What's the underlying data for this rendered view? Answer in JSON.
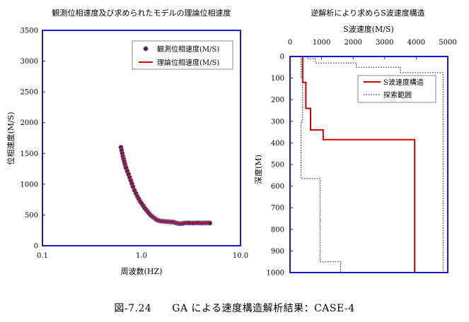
{
  "caption": "図-7.24　　GA による速度構造解析結果：CASE-4",
  "chart_data": [
    {
      "type": "scatter",
      "title": "観測位相速度及び求められたモデルの理論位相速度",
      "xlabel": "周波数(HZ)",
      "ylabel": "位相速度(M/S)",
      "xscale": "log",
      "xlim": [
        0.1,
        10.0
      ],
      "ylim": [
        0,
        3500
      ],
      "xticks": [
        "0.1",
        "1.0",
        "10.0"
      ],
      "xtick_values": [
        0.1,
        1.0,
        10.0
      ],
      "yticks": [
        "0",
        "500",
        "1000",
        "1500",
        "2000",
        "2500",
        "3000",
        "3500"
      ],
      "ytick_values": [
        0,
        500,
        1000,
        1500,
        2000,
        2500,
        3000,
        3500
      ],
      "legend": {
        "position": "top-right",
        "entries": [
          "観測位相速度(M/S)",
          "理論位相速度(M/S)"
        ]
      },
      "series": [
        {
          "name": "観測位相速度(M/S)",
          "marker": "circle",
          "color": "#2b2b50",
          "x": [
            0.62,
            0.63,
            0.64,
            0.65,
            0.66,
            0.67,
            0.68,
            0.69,
            0.7,
            0.72,
            0.74,
            0.76,
            0.78,
            0.8,
            0.82,
            0.85,
            0.88,
            0.91,
            0.94,
            0.97,
            1.0,
            1.04,
            1.08,
            1.12,
            1.16,
            1.2,
            1.25,
            1.3,
            1.35,
            1.4,
            1.46,
            1.52,
            1.58,
            1.65,
            1.72,
            1.8,
            1.88,
            1.96,
            2.05,
            2.15,
            2.25,
            2.35,
            2.45,
            2.55,
            2.65,
            2.8,
            2.95,
            3.1,
            3.3,
            3.5,
            3.7,
            3.9,
            4.1,
            4.3,
            4.5,
            4.7,
            4.9
          ],
          "y": [
            1600,
            1550,
            1500,
            1450,
            1410,
            1370,
            1330,
            1290,
            1260,
            1210,
            1160,
            1110,
            1060,
            1010,
            960,
            900,
            850,
            800,
            760,
            720,
            690,
            650,
            610,
            580,
            550,
            520,
            490,
            470,
            450,
            430,
            415,
            405,
            400,
            398,
            395,
            392,
            390,
            388,
            385,
            380,
            370,
            362,
            358,
            360,
            365,
            370,
            372,
            370,
            368,
            370,
            372,
            370,
            368,
            370,
            371,
            370,
            369
          ]
        },
        {
          "name": "理論位相速度(M/S)",
          "marker": "line",
          "color": "#d40000",
          "x": [
            0.62,
            0.65,
            0.7,
            0.76,
            0.82,
            0.88,
            0.94,
            1.0,
            1.08,
            1.16,
            1.25,
            1.35,
            1.46,
            1.58,
            1.72,
            1.88,
            2.05,
            2.25,
            2.45,
            2.65,
            2.95,
            3.3,
            3.7,
            4.1,
            4.5,
            4.9
          ],
          "y": [
            1600,
            1450,
            1260,
            1110,
            960,
            850,
            760,
            690,
            610,
            550,
            490,
            450,
            415,
            400,
            395,
            390,
            385,
            370,
            358,
            365,
            372,
            368,
            372,
            368,
            370,
            369
          ]
        }
      ]
    },
    {
      "type": "line",
      "title": "逆解析により求めらS波速度構造",
      "xlabel": "S波速度(M/S)",
      "ylabel": "深度(M)",
      "x_axis_position": "top",
      "y_inverted": true,
      "xlim": [
        0,
        5000
      ],
      "ylim": [
        0,
        1000
      ],
      "xticks": [
        "0",
        "1000",
        "2000",
        "3000",
        "4000",
        "5000"
      ],
      "xtick_values": [
        0,
        1000,
        2000,
        3000,
        4000,
        5000
      ],
      "yticks": [
        "0",
        "100",
        "200",
        "300",
        "400",
        "500",
        "600",
        "700",
        "800",
        "900",
        "1000"
      ],
      "ytick_values": [
        0,
        100,
        200,
        300,
        400,
        500,
        600,
        700,
        800,
        900,
        1000
      ],
      "legend": {
        "position": "top-right",
        "entries": [
          "S波速度構造",
          "探索範囲"
        ]
      },
      "series": [
        {
          "name": "S波速度構造",
          "style": "solid",
          "color": "#d40000",
          "x": [
            400,
            400,
            500,
            500,
            650,
            650,
            1050,
            1050,
            2100,
            2100,
            3950,
            3950
          ],
          "y": [
            0,
            120,
            120,
            240,
            240,
            340,
            340,
            385,
            385,
            385,
            385,
            1000
          ]
        },
        {
          "name": "探索範囲",
          "style": "dotted",
          "color": "#000000",
          "x": [
            350,
            350,
            400,
            400,
            350,
            350,
            950,
            950,
            1600,
            1600
          ],
          "y": [
            0,
            100,
            100,
            300,
            300,
            565,
            565,
            950,
            950,
            1000
          ]
        },
        {
          "name": "探索範囲",
          "style": "dotted",
          "color": "#000000",
          "x": [
            550,
            550,
            800,
            800,
            2100,
            2100,
            3500,
            3500,
            4850,
            4850
          ],
          "y": [
            0,
            10,
            10,
            30,
            30,
            50,
            50,
            75,
            75,
            1000
          ]
        }
      ]
    }
  ]
}
